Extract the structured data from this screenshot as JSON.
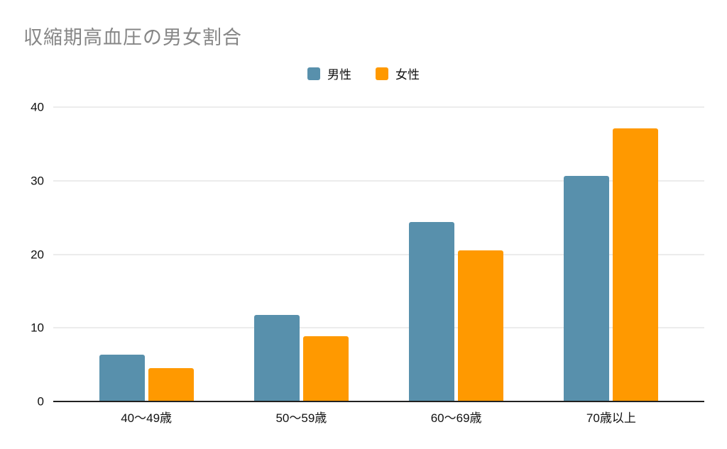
{
  "chart_data": {
    "type": "bar",
    "title": "収縮期高血圧の男女割合",
    "categories": [
      "40〜49歳",
      "50〜59歳",
      "60〜69歳",
      "70歳以上"
    ],
    "series": [
      {
        "key": "male",
        "name": "男性",
        "color": "#5890ac",
        "values": [
          6.4,
          11.8,
          24.4,
          30.7
        ]
      },
      {
        "key": "female",
        "name": "女性",
        "color": "#ff9900",
        "values": [
          4.5,
          8.9,
          20.5,
          37.1
        ]
      }
    ],
    "xlabel": "",
    "ylabel": "",
    "ylim": [
      0,
      40
    ],
    "yticks": [
      0,
      10,
      20,
      30,
      40
    ],
    "grid": true,
    "legend_position": "top-center",
    "colors": {
      "title": "#868686",
      "gridline": "#d9d9d9",
      "axis": "#212121",
      "text": "#111111",
      "background": "#ffffff"
    }
  }
}
